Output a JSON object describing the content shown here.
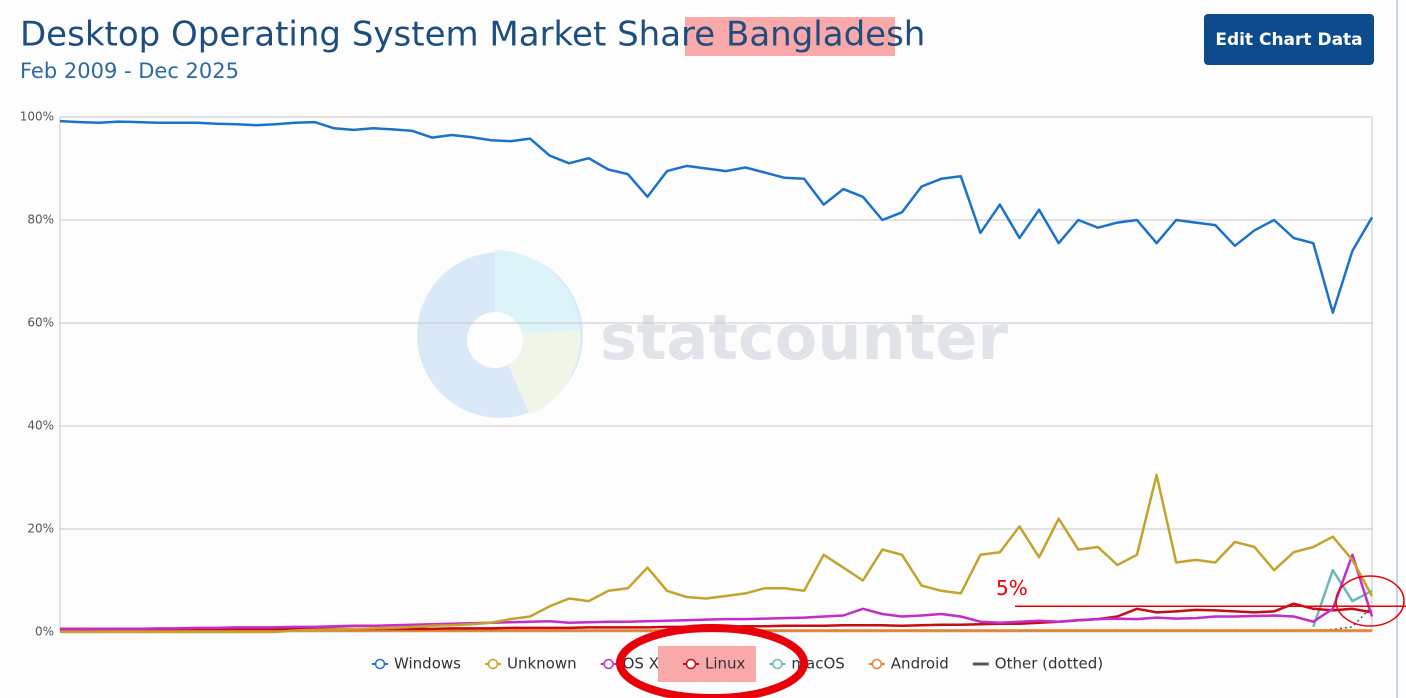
{
  "chart_data": {
    "type": "line",
    "title": "Desktop Operating System Market Share Bangladesh",
    "subtitle": "Feb 2009 - Dec 2025",
    "button": "Edit Chart Data",
    "watermark": "statcounter",
    "ylim": [
      0,
      100
    ],
    "yticks": [
      {
        "value": 0,
        "label": "0%"
      },
      {
        "value": 20,
        "label": "20%"
      },
      {
        "value": 40,
        "label": "40%"
      },
      {
        "value": 60,
        "label": "60%"
      },
      {
        "value": 80,
        "label": "80%"
      },
      {
        "value": 100,
        "label": "100%"
      }
    ],
    "grid": true,
    "annotations": [
      {
        "text": "5%",
        "value": 5
      }
    ],
    "series": [
      {
        "name": "Windows",
        "color": "#1b72c9",
        "values": [
          99.2,
          99,
          98.9,
          99.1,
          99,
          98.9,
          98.9,
          98.9,
          98.7,
          98.6,
          98.4,
          98.6,
          98.9,
          99,
          97.8,
          97.5,
          97.8,
          97.6,
          97.3,
          96,
          96.5,
          96.1,
          95.5,
          95.3,
          95.8,
          92.5,
          91,
          92,
          89.8,
          88.9,
          84.5,
          89.5,
          90.5,
          90,
          89.5,
          90.2,
          89.2,
          88.2,
          88,
          83,
          86,
          84.5,
          80,
          81.5,
          86.5,
          88,
          88.5,
          77.5,
          83,
          76.5,
          82,
          75.5,
          80,
          78.5,
          79.5,
          80,
          75.5,
          80,
          79.5,
          79,
          75,
          78,
          80,
          76.5,
          75.5,
          62,
          74,
          80.5
        ]
      },
      {
        "name": "Unknown",
        "color": "#c4a22c",
        "values": [
          0,
          0,
          0,
          0,
          0,
          0,
          0,
          0,
          0,
          0,
          0,
          0,
          0.3,
          0.4,
          0.5,
          0.6,
          0.7,
          0.8,
          1,
          1.2,
          1.3,
          1.5,
          1.8,
          2.5,
          3,
          5,
          6.5,
          6,
          8,
          8.5,
          12.5,
          8,
          6.8,
          6.5,
          7,
          7.5,
          8.5,
          8.5,
          8,
          15,
          12.5,
          10,
          16,
          15,
          9,
          8,
          7.5,
          15,
          15.5,
          20.5,
          14.5,
          22,
          16,
          16.5,
          13,
          15,
          30.5,
          13.5,
          14,
          13.5,
          17.5,
          16.5,
          12,
          15.5,
          16.5,
          18.5,
          14,
          7
        ]
      },
      {
        "name": "OS X",
        "color": "#c52cc8",
        "values": [
          0.5,
          0.5,
          0.6,
          0.6,
          0.6,
          0.7,
          0.7,
          0.8,
          0.8,
          0.9,
          0.9,
          0.9,
          1,
          1,
          1.1,
          1.2,
          1.2,
          1.3,
          1.4,
          1.5,
          1.6,
          1.7,
          1.8,
          1.9,
          2,
          2.1,
          1.8,
          1.9,
          2,
          2,
          2.1,
          2.2,
          2.3,
          2.4,
          2.5,
          2.5,
          2.6,
          2.7,
          2.8,
          3,
          3.2,
          4.5,
          3.5,
          3,
          3.2,
          3.5,
          3,
          2,
          1.8,
          2,
          2.2,
          2,
          2.3,
          2.5,
          2.6,
          2.5,
          2.8,
          2.6,
          2.7,
          3,
          3,
          3.1,
          3.2,
          3,
          2,
          4.5,
          15,
          3
        ]
      },
      {
        "name": "Linux",
        "color": "#c40d14",
        "values": [
          0.6,
          0.6,
          0.6,
          0.6,
          0.6,
          0.6,
          0.6,
          0.6,
          0.6,
          0.6,
          0.6,
          0.6,
          0.6,
          0.6,
          0.6,
          0.6,
          0.6,
          0.6,
          0.6,
          0.6,
          0.7,
          0.7,
          0.7,
          0.8,
          0.8,
          0.8,
          0.8,
          0.9,
          0.9,
          0.9,
          0.9,
          1,
          1,
          1,
          1,
          1.1,
          1.1,
          1.2,
          1.2,
          1.2,
          1.3,
          1.3,
          1.3,
          1.2,
          1.3,
          1.4,
          1.4,
          1.5,
          1.6,
          1.6,
          1.8,
          2,
          2.3,
          2.5,
          3,
          4.5,
          3.8,
          4,
          4.3,
          4.2,
          4,
          3.8,
          4,
          5.5,
          4.5,
          4.2,
          4.5,
          3.8
        ]
      },
      {
        "name": "macOS",
        "color": "#6cb8b8",
        "values": [
          null,
          null,
          null,
          null,
          null,
          null,
          null,
          null,
          null,
          null,
          null,
          null,
          null,
          null,
          null,
          null,
          null,
          null,
          null,
          null,
          null,
          null,
          null,
          null,
          null,
          null,
          null,
          null,
          null,
          null,
          null,
          null,
          null,
          null,
          null,
          null,
          null,
          null,
          null,
          null,
          null,
          null,
          null,
          null,
          null,
          null,
          null,
          null,
          null,
          null,
          null,
          null,
          null,
          null,
          null,
          null,
          null,
          null,
          null,
          null,
          null,
          null,
          null,
          null,
          1,
          12,
          6,
          8
        ]
      },
      {
        "name": "Android",
        "color": "#e8802a",
        "values": [
          0.2,
          0.2,
          0.2,
          0.3,
          0.4,
          0.4,
          0.3,
          0.3,
          0.3,
          0.3,
          0.3,
          0.3,
          0.3,
          0.3,
          0.3,
          0.3,
          0.3,
          0.3,
          0.3,
          0.3,
          0.3,
          0.3,
          0.3,
          0.3,
          0.3,
          0.3,
          0.3,
          0.3,
          0.3,
          0.3,
          0.3,
          0.3,
          0.3,
          0.3,
          0.3,
          0.3,
          0.3,
          0.3,
          0.3,
          0.3,
          0.3,
          0.3,
          0.3,
          0.3,
          0.3,
          0.3,
          0.3,
          0.3,
          0.3,
          0.3,
          0.3,
          0.3,
          0.3,
          0.3,
          0.3,
          0.3,
          0.3,
          0.3,
          0.3,
          0.3,
          0.3,
          0.3,
          0.3,
          0.3,
          0.3,
          0.3,
          0.3,
          0.3
        ]
      },
      {
        "name": "Other (dotted)",
        "color": "#555555",
        "dotted": true,
        "values": [
          0.2,
          0.2,
          0.2,
          0.2,
          0.2,
          0.2,
          0.2,
          0.2,
          0.2,
          0.2,
          0.2,
          0.2,
          0.2,
          0.2,
          0.2,
          0.2,
          0.2,
          0.2,
          0.2,
          0.2,
          0.2,
          0.2,
          0.2,
          0.2,
          0.2,
          0.2,
          0.2,
          0.2,
          0.2,
          0.2,
          0.2,
          0.2,
          0.2,
          0.2,
          0.2,
          0.2,
          0.2,
          0.2,
          0.2,
          0.2,
          0.2,
          0.2,
          0.2,
          0.2,
          0.2,
          0.2,
          0.2,
          0.2,
          0.2,
          0.2,
          0.2,
          0.2,
          0.2,
          0.2,
          0.2,
          0.2,
          0.2,
          0.2,
          0.2,
          0.2,
          0.2,
          0.2,
          0.2,
          0.2,
          0.3,
          0.5,
          1,
          5
        ]
      }
    ]
  }
}
